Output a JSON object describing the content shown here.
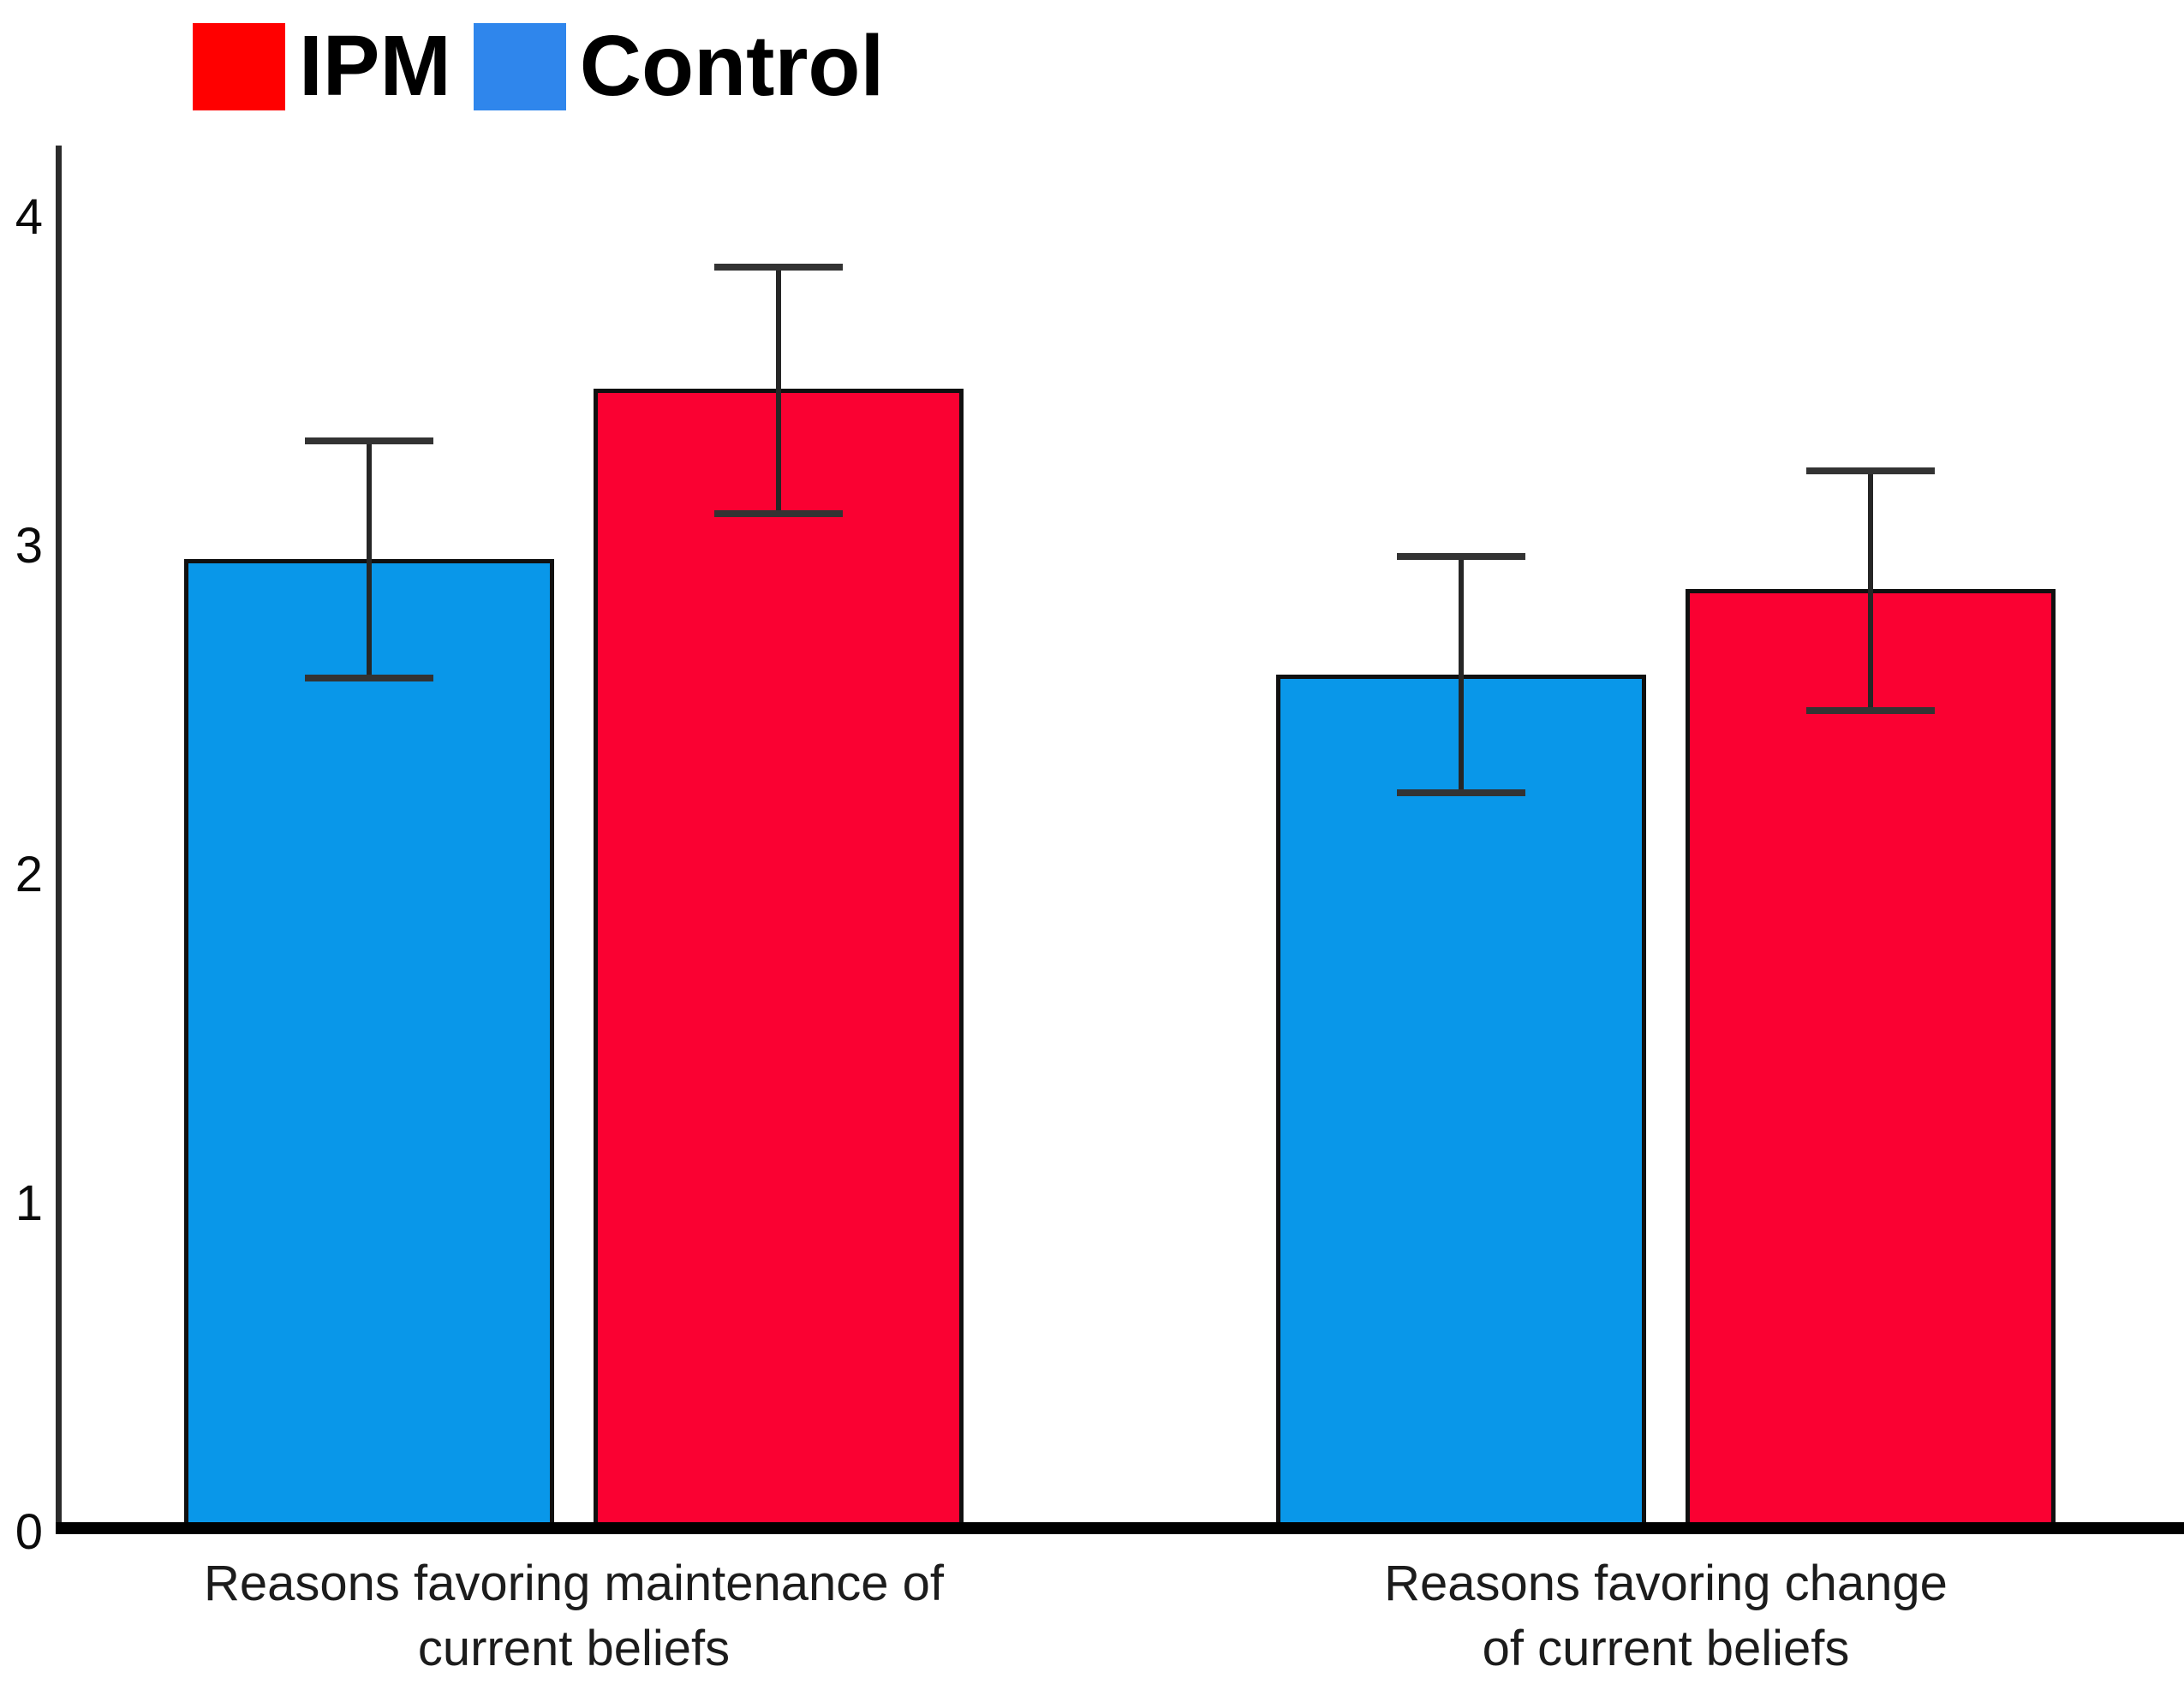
{
  "chart_data": {
    "type": "bar",
    "title": "",
    "categories": [
      "Reasons favoring maintenance of\ncurrent beliefs",
      "Reasons favoring change\nof current beliefs"
    ],
    "series": [
      {
        "name": "Control",
        "color": "#0997E9",
        "values": [
          2.96,
          2.61
        ],
        "ci_low": [
          2.6,
          2.25
        ],
        "ci_high": [
          3.32,
          2.97
        ]
      },
      {
        "name": "IPM",
        "color": "#FA0132",
        "values": [
          3.48,
          2.87
        ],
        "ci_low": [
          3.1,
          2.5
        ],
        "ci_high": [
          3.85,
          3.23
        ]
      }
    ],
    "bar_order_in_group": [
      "Control",
      "IPM"
    ],
    "legend": [
      {
        "label": "IPM",
        "color": "#FF0000"
      },
      {
        "label": "Control",
        "color": "#2F86EC"
      }
    ],
    "legend_position": "top-left",
    "xlabel": "",
    "ylabel": "",
    "ylim": [
      0,
      4.2
    ],
    "yticks": [
      "0",
      "1",
      "2",
      "3",
      "4"
    ],
    "grid": false,
    "error_bars": true
  },
  "colors": {
    "axis": "#000000",
    "error_bar": "#333333",
    "text": "#000000",
    "background": "#FFFFFF"
  }
}
